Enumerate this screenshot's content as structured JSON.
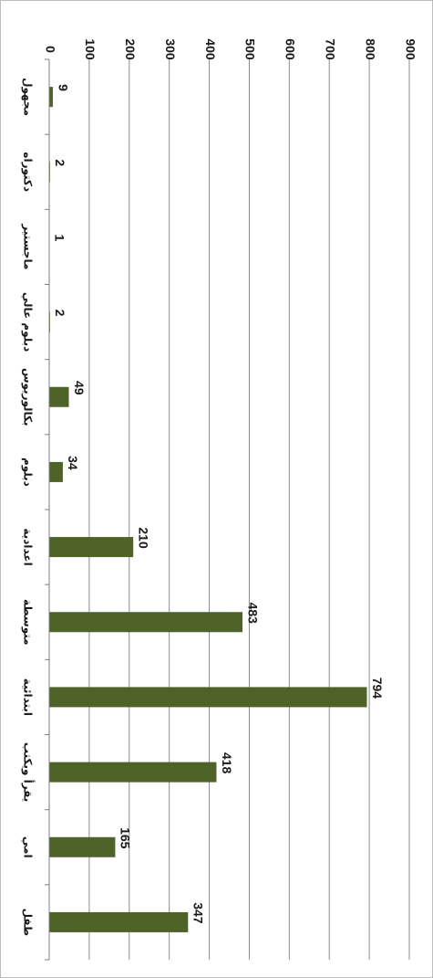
{
  "chart_data": {
    "type": "bar",
    "orientation": "rotated-horizontal",
    "title": "",
    "xlabel": "",
    "ylabel": "",
    "categories": [
      "مجهول",
      "دكتوراه",
      "ماجستير",
      "دبلوم عالي",
      "بكالوريوس",
      "دبلوم",
      "اعدادية",
      "متوسطة",
      "ابتدائية",
      "يقرأ ويكتب",
      "امي",
      "طفل"
    ],
    "values": [
      9,
      2,
      1,
      2,
      49,
      34,
      210,
      483,
      794,
      418,
      165,
      347
    ],
    "value_labels": [
      "9",
      "2",
      "1",
      "2",
      "49",
      "34",
      "210",
      "483",
      "794",
      "418",
      "165",
      "347"
    ],
    "ylim": [
      0,
      900
    ],
    "ticks": [
      0,
      100,
      200,
      300,
      400,
      500,
      600,
      700,
      800,
      900
    ],
    "tick_labels": [
      "0",
      "100",
      "200",
      "300",
      "400",
      "500",
      "600",
      "700",
      "800",
      "900"
    ],
    "grid": true,
    "legend": "none",
    "colors": {
      "bar": "#4f6228",
      "grid": "#8c8c8c",
      "axis": "#7f7f7f"
    }
  }
}
